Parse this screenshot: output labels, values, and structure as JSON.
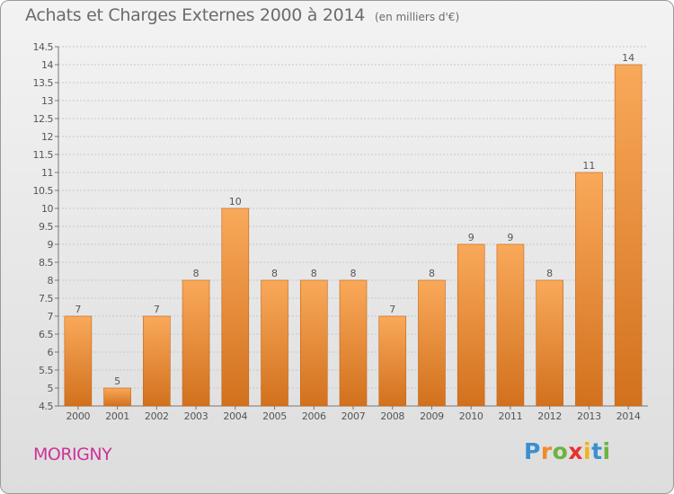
{
  "title": "Achats et Charges Externes 2000 à 2014",
  "subtitle": "(en milliers d'€)",
  "commune": "MORIGNY",
  "logo": {
    "text": "Proxiti",
    "letters": [
      {
        "ch": "P",
        "color": "#3a8fd0"
      },
      {
        "ch": "r",
        "color": "#f08a2c"
      },
      {
        "ch": "o",
        "color": "#6db33f"
      },
      {
        "ch": "x",
        "color": "#e8312f"
      },
      {
        "ch": "i",
        "color": "#f2b21c"
      },
      {
        "ch": "t",
        "color": "#3a8fd0"
      },
      {
        "ch": "i",
        "color": "#6db33f"
      }
    ]
  },
  "colors": {
    "bar_top": "#f9a95a",
    "bar_bottom": "#d2711d",
    "grid": "#c8c8c8",
    "text": "#555555",
    "title": "#6b6b6b",
    "commune": "#cc3399"
  },
  "chart_data": {
    "type": "bar",
    "title": "Achats et Charges Externes 2000 à 2014",
    "subtitle": "(en milliers d'€)",
    "xlabel": "",
    "ylabel": "",
    "ylim": [
      4.5,
      14.5
    ],
    "ytick_step": 0.5,
    "ytick_labels": [
      "4.5",
      "5",
      "5.5",
      "6",
      "6.5",
      "7",
      "7.5",
      "8",
      "8.5",
      "9",
      "9.5",
      "10",
      "10.5",
      "11",
      "11.5",
      "12",
      "12.5",
      "13",
      "13.5",
      "14",
      "14.5"
    ],
    "grid": true,
    "legend": "none",
    "categories": [
      "2000",
      "2001",
      "2002",
      "2003",
      "2004",
      "2005",
      "2006",
      "2007",
      "2008",
      "2009",
      "2010",
      "2011",
      "2012",
      "2013",
      "2014"
    ],
    "values": [
      7,
      5,
      7,
      8,
      10,
      8,
      8,
      8,
      7,
      8,
      9,
      9,
      8,
      11,
      14
    ],
    "data_labels": [
      "7",
      "5",
      "7",
      "8",
      "10",
      "8",
      "8",
      "8",
      "7",
      "8",
      "9",
      "9",
      "8",
      "11",
      "14"
    ]
  }
}
